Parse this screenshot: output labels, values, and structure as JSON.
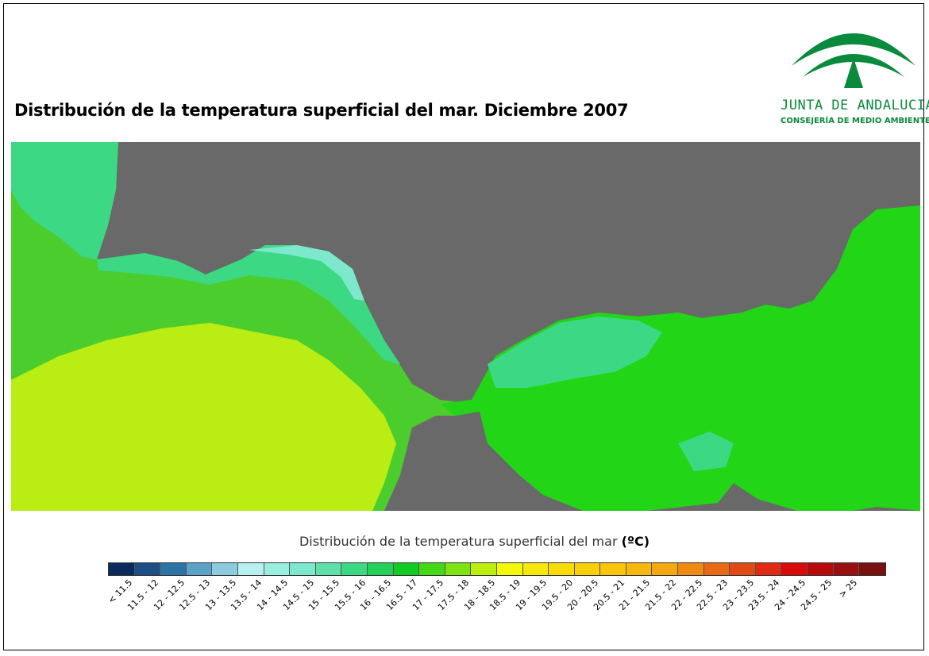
{
  "title": "Distribución de la temperatura superficial del mar. Diciembre 2007",
  "logo": {
    "name": "JUNTA DE ANDALUCIA",
    "subtitle": "CONSEJERÍA DE MEDIO AMBIENTE",
    "color": "#0a8a3c"
  },
  "legend": {
    "title": "Distribución de la temperatura superficial del mar",
    "unit": "(ºC)",
    "classes": [
      {
        "label": "< 11.5",
        "color": "#0b2a5e"
      },
      {
        "label": "11.5 - 12",
        "color": "#1b4f86"
      },
      {
        "label": "12 - 12.5",
        "color": "#2e73a6"
      },
      {
        "label": "12.5 - 13",
        "color": "#5aa2c8"
      },
      {
        "label": "13 - 13.5",
        "color": "#8ccbe0"
      },
      {
        "label": "13.5 - 14",
        "color": "#b8f0f2"
      },
      {
        "label": "14 - 14.5",
        "color": "#9af0e0"
      },
      {
        "label": "14.5 - 15",
        "color": "#7ee8cc"
      },
      {
        "label": "15 - 15.5",
        "color": "#5ee0a8"
      },
      {
        "label": "15.5 - 16",
        "color": "#3cd884"
      },
      {
        "label": "16 - 16.5",
        "color": "#22d05a"
      },
      {
        "label": "16.5 - 17",
        "color": "#12cc22"
      },
      {
        "label": "17 - 17.5",
        "color": "#44d816"
      },
      {
        "label": "17.5 - 18",
        "color": "#7de412"
      },
      {
        "label": "18 - 18.5",
        "color": "#bcef10"
      },
      {
        "label": "18.5 - 19",
        "color": "#f4f80a"
      },
      {
        "label": "19 - 19.5",
        "color": "#f6e80a"
      },
      {
        "label": "19.5 - 20",
        "color": "#f8dc0a"
      },
      {
        "label": "20 - 20.5",
        "color": "#f8d00a"
      },
      {
        "label": "20.5 - 21",
        "color": "#f8c40c"
      },
      {
        "label": "21 - 21.5",
        "color": "#f8b80e"
      },
      {
        "label": "21.5 - 22",
        "color": "#f6a810"
      },
      {
        "label": "22 - 22.5",
        "color": "#f08a12"
      },
      {
        "label": "22.5 - 23",
        "color": "#e86a14"
      },
      {
        "label": "23 - 23.5",
        "color": "#e04a14"
      },
      {
        "label": "23.5 - 24",
        "color": "#e02a14"
      },
      {
        "label": "24 - 24.5",
        "color": "#d80a0a"
      },
      {
        "label": "24.5 - 25",
        "color": "#b80a0a"
      },
      {
        "label": "> 25",
        "color": "#981010"
      },
      {
        "label": "",
        "color": "#7a1010"
      }
    ]
  },
  "map_colors": {
    "land": "#696969",
    "atlantic_base": "#4ccd2e",
    "atlantic_warm": "#b9ed14",
    "alboran": "#22d516",
    "coastal_cool": "#3cd884"
  }
}
